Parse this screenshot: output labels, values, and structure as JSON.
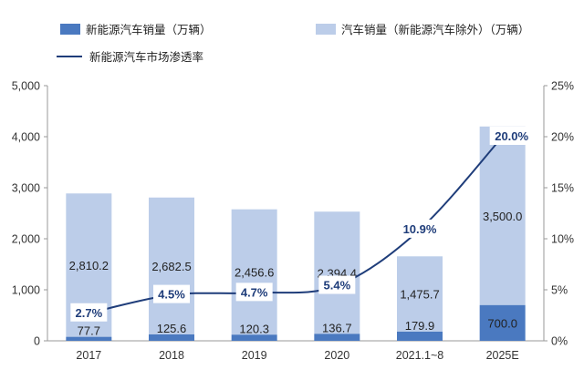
{
  "chart_data": {
    "type": "bar",
    "categories": [
      "2017",
      "2018",
      "2019",
      "2020",
      "2021.1~8",
      "2025E"
    ],
    "series": [
      {
        "name": "新能源汽车销量（万辆）",
        "values": [
          77.7,
          125.6,
          120.3,
          136.7,
          179.9,
          700.0
        ],
        "labels": [
          "77.7",
          "125.6",
          "120.3",
          "136.7",
          "179.9",
          "700.0"
        ],
        "color": "#4a79c0"
      },
      {
        "name": "汽车销量（新能源汽车除外）（万辆）",
        "values": [
          2810.2,
          2682.5,
          2456.6,
          2394.4,
          1475.7,
          3500.0
        ],
        "labels": [
          "2,810.2",
          "2,682.5",
          "2,456.6",
          "2,394.4",
          "1,475.7",
          "3,500.0"
        ],
        "color": "#bccde9"
      },
      {
        "name": "新能源汽车市场渗透率",
        "type": "line",
        "axis": "right",
        "values": [
          2.7,
          4.5,
          4.7,
          5.4,
          10.9,
          20.0
        ],
        "labels": [
          "2.7%",
          "4.5%",
          "4.7%",
          "5.4%",
          "10.9%",
          "20.0%"
        ],
        "color": "#1f3d7a"
      }
    ],
    "stacked": true,
    "ylim": [
      0,
      5000
    ],
    "yticks": [
      "0",
      "1,000",
      "2,000",
      "3,000",
      "4,000",
      "5,000"
    ],
    "y2lim": [
      0,
      25
    ],
    "y2ticks": [
      "0%",
      "5%",
      "10%",
      "15%",
      "20%",
      "25%"
    ],
    "grid": false,
    "legend_position": "top"
  }
}
